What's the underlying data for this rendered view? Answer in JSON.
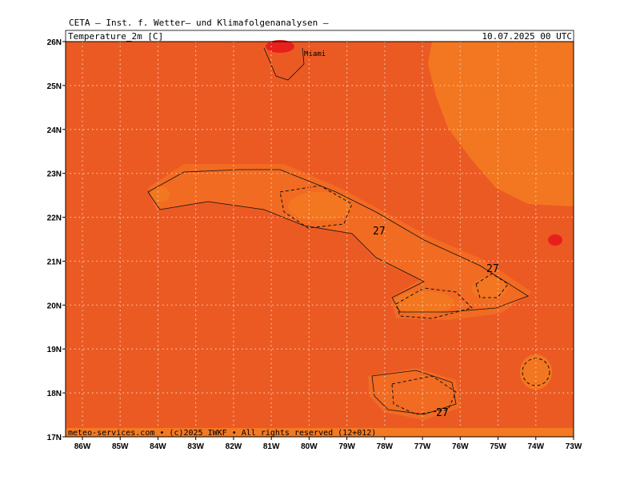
{
  "header": "CETA – Inst. f. Wetter– und Klimafolgenanalysen –",
  "map": {
    "title": "Temperature_2m [C]",
    "valid_time": "10.07.2025 00 UTC",
    "xticks": [
      "86W",
      "85W",
      "84W",
      "83W",
      "82W",
      "81W",
      "80W",
      "79W",
      "78W",
      "77W",
      "76W",
      "75W",
      "74W",
      "73W"
    ],
    "yticks": [
      "26N",
      "25N",
      "24N",
      "23N",
      "22N",
      "21N",
      "20N",
      "19N",
      "18N",
      "17N"
    ],
    "place_labels": [
      "Miami"
    ],
    "contour_labels": [
      "27",
      "27",
      "27"
    ],
    "credit": "meteo-services.com • (c)2025 IWKF • All rights reserved (12+012)"
  }
}
